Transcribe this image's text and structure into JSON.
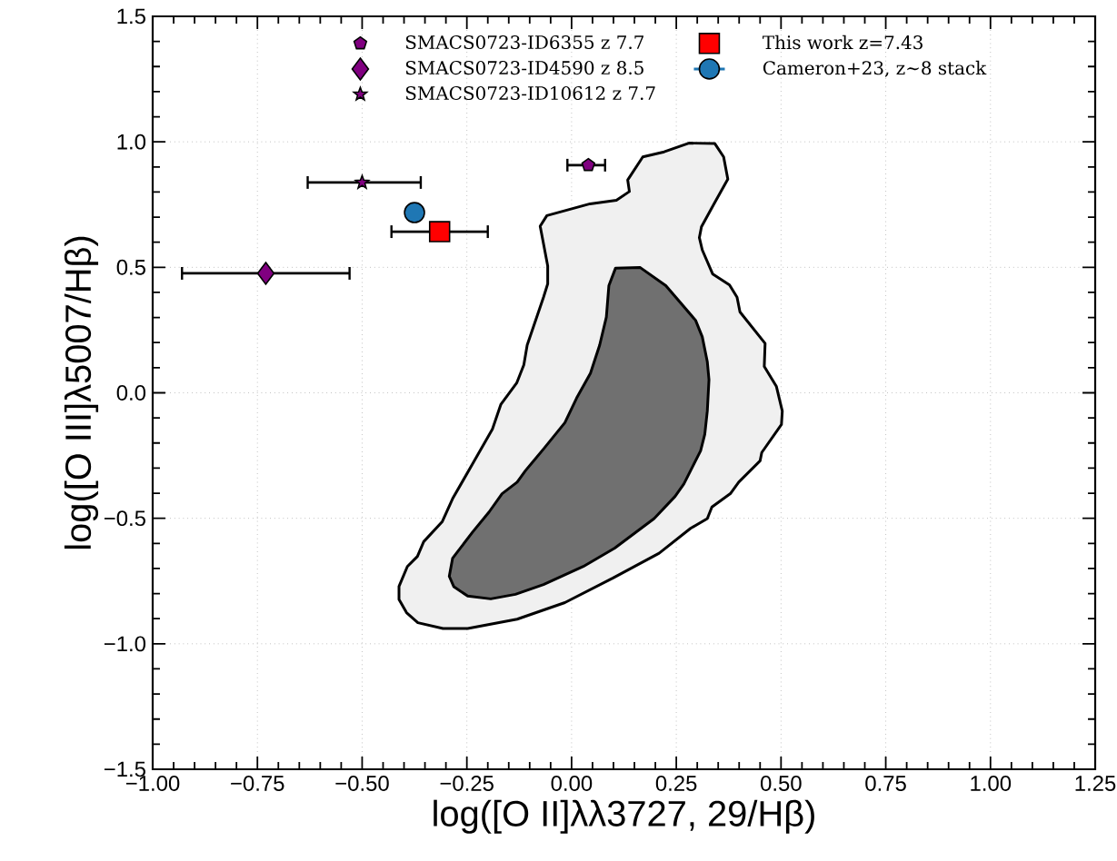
{
  "chart_data": {
    "type": "scatter",
    "xlabel": "log([O II]λλ3727, 29/Hβ)",
    "ylabel": "log([O III]λ5007/Hβ)",
    "xlim": [
      -1.0,
      1.25
    ],
    "ylim": [
      -1.5,
      1.5
    ],
    "xticks": [
      {
        "value": -1.0,
        "label": "−1.00"
      },
      {
        "value": -0.75,
        "label": "−0.75"
      },
      {
        "value": -0.5,
        "label": "−0.50"
      },
      {
        "value": -0.25,
        "label": "−0.25"
      },
      {
        "value": 0,
        "label": "0.00"
      },
      {
        "value": 0.25,
        "label": "0.25"
      },
      {
        "value": 0.5,
        "label": "0.50"
      },
      {
        "value": 0.75,
        "label": "0.75"
      },
      {
        "value": 1.0,
        "label": "1.00"
      },
      {
        "value": 1.25,
        "label": "1.25"
      }
    ],
    "yticks": [
      {
        "value": -1.5,
        "label": "−1.5"
      },
      {
        "value": -1.0,
        "label": "−1.0"
      },
      {
        "value": -0.5,
        "label": "−0.5"
      },
      {
        "value": 0,
        "label": "0.0"
      },
      {
        "value": 0.5,
        "label": "0.5"
      },
      {
        "value": 1.0,
        "label": "1.0"
      },
      {
        "value": 1.5,
        "label": "1.5"
      }
    ],
    "grid": true,
    "legend": "top",
    "series": [
      {
        "type": "area",
        "color": "#f0f0f0",
        "x": [
          0.28,
          0.342,
          0.363,
          0.373,
          0.34,
          0.31,
          0.305,
          0.312,
          0.337,
          0.377,
          0.395,
          0.402,
          0.462,
          0.46,
          0.489,
          0.503,
          0.501,
          0.454,
          0.45,
          0.399,
          0.379,
          0.335,
          0.324,
          0.284,
          0.209,
          0.099,
          -0.016,
          -0.13,
          -0.248,
          -0.307,
          -0.367,
          -0.394,
          -0.412,
          -0.412,
          -0.392,
          -0.368,
          -0.353,
          -0.309,
          -0.284,
          -0.189,
          -0.169,
          -0.131,
          -0.114,
          -0.106,
          -0.067,
          -0.057,
          -0.057,
          -0.075,
          -0.059,
          0.044,
          0.107,
          0.138,
          0.134,
          0.17,
          0.221
        ],
        "values": [
          0.995,
          0.993,
          0.94,
          0.851,
          0.753,
          0.661,
          0.618,
          0.569,
          0.473,
          0.43,
          0.381,
          0.322,
          0.197,
          0.105,
          0.025,
          -0.073,
          -0.126,
          -0.238,
          -0.271,
          -0.356,
          -0.402,
          -0.455,
          -0.501,
          -0.54,
          -0.639,
          -0.738,
          -0.836,
          -0.902,
          -0.939,
          -0.939,
          -0.916,
          -0.876,
          -0.823,
          -0.771,
          -0.692,
          -0.652,
          -0.593,
          -0.514,
          -0.422,
          -0.145,
          -0.047,
          0.039,
          0.111,
          0.19,
          0.381,
          0.434,
          0.506,
          0.664,
          0.706,
          0.753,
          0.767,
          0.802,
          0.848,
          0.94,
          0.96
        ]
      },
      {
        "type": "area",
        "color": "#707070",
        "x": [
          0.105,
          0.164,
          0.225,
          0.296,
          0.312,
          0.324,
          0.328,
          0.324,
          0.318,
          0.308,
          0.288,
          0.268,
          0.247,
          0.197,
          0.103,
          0.028,
          -0.067,
          -0.134,
          -0.193,
          -0.248,
          -0.281,
          -0.292,
          -0.284,
          -0.236,
          -0.197,
          -0.166,
          -0.13,
          -0.11,
          -0.067,
          -0.016,
          0.012,
          0.045,
          0.067,
          0.083,
          0.089
        ],
        "values": [
          0.497,
          0.499,
          0.427,
          0.289,
          0.223,
          0.124,
          0.052,
          -0.073,
          -0.165,
          -0.231,
          -0.297,
          -0.363,
          -0.413,
          -0.501,
          -0.619,
          -0.692,
          -0.764,
          -0.803,
          -0.821,
          -0.81,
          -0.773,
          -0.731,
          -0.659,
          -0.554,
          -0.475,
          -0.402,
          -0.356,
          -0.31,
          -0.224,
          -0.119,
          -0.021,
          0.078,
          0.19,
          0.302,
          0.427
        ]
      },
      {
        "name": "SMACS0723-ID6355 z 7.7",
        "color": "#800080",
        "x": [
          0.04
        ],
        "values": [
          0.907
        ],
        "xerrors": [
          [
            -0.01,
            0.08
          ]
        ]
      },
      {
        "name": "SMACS0723-ID4590 z 8.5",
        "color": "#800080",
        "marker": "diamond",
        "x": [
          -0.73
        ],
        "values": [
          0.476
        ],
        "xerrors": [
          [
            -0.93,
            -0.53
          ]
        ]
      },
      {
        "name": "SMACS0723-ID10612 z 7.7",
        "color": "#800080",
        "marker": "star",
        "x": [
          -0.5
        ],
        "values": [
          0.838
        ],
        "xerrors": [
          [
            -0.63,
            -0.36
          ]
        ]
      },
      {
        "name": "This work z=7.43",
        "color": "#ff0000",
        "marker": "square",
        "x": [
          -0.315
        ],
        "values": [
          0.642
        ],
        "xerrors": [
          [
            -0.43,
            -0.2
          ]
        ]
      },
      {
        "type": "line",
        "name": "Cameron+23, z∼8 stack",
        "color": "#1f77b4",
        "marker": "circle",
        "x": [
          -0.375
        ],
        "values": [
          0.718
        ]
      }
    ]
  }
}
